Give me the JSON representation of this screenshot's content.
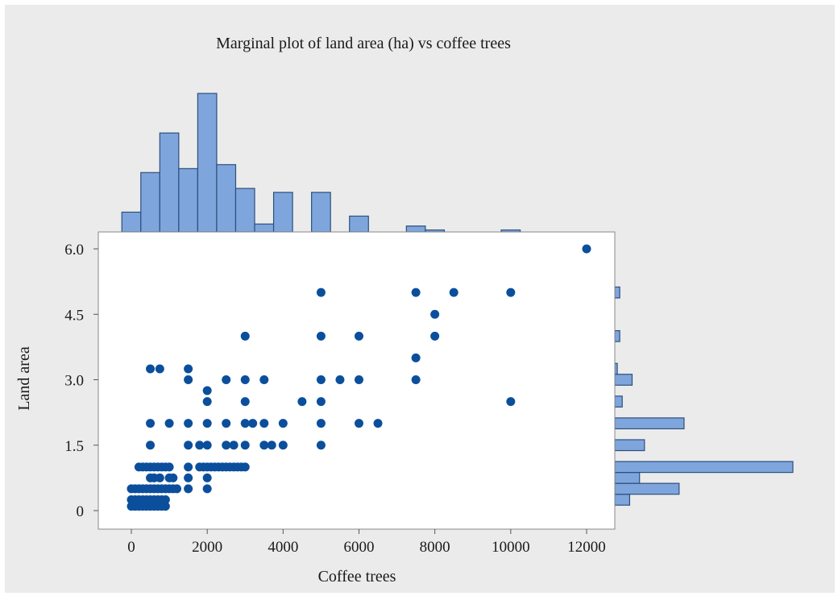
{
  "chart_data": {
    "type": "scatter",
    "title": "Marginal plot of land area (ha) vs coffee trees",
    "xlabel": "Coffee trees",
    "ylabel": "Land area",
    "xlim": [
      -800,
      12800
    ],
    "ylim": [
      -0.3,
      6.35
    ],
    "x_ticks": [
      0,
      2000,
      4000,
      6000,
      8000,
      10000,
      12000
    ],
    "x_tick_labels": [
      "0",
      "2000",
      "4000",
      "6000",
      "8000",
      "10000",
      "12000"
    ],
    "y_ticks": [
      0,
      1.5,
      3.0,
      4.5,
      6.0
    ],
    "y_tick_labels": [
      "0",
      "1.5",
      "3.0",
      "4.5",
      "6.0"
    ],
    "grid": false,
    "colors": {
      "background": "#ebebeb",
      "plot_area": "#ffffff",
      "point": "#0b4f9c",
      "bar_fill": "#7ea6dc",
      "bar_edge": "#2d4f7e"
    },
    "points": [
      [
        12000,
        6.0
      ],
      [
        5000,
        5.0
      ],
      [
        7500,
        5.0
      ],
      [
        8500,
        5.0
      ],
      [
        10000,
        5.0
      ],
      [
        8000,
        4.5
      ],
      [
        3000,
        4.0
      ],
      [
        5000,
        4.0
      ],
      [
        6000,
        4.0
      ],
      [
        8000,
        4.0
      ],
      [
        7500,
        3.5
      ],
      [
        500,
        3.25
      ],
      [
        750,
        3.25
      ],
      [
        1500,
        3.25
      ],
      [
        1500,
        3.0
      ],
      [
        2500,
        3.0
      ],
      [
        3000,
        3.0
      ],
      [
        3500,
        3.0
      ],
      [
        5000,
        3.0
      ],
      [
        5500,
        3.0
      ],
      [
        6000,
        3.0
      ],
      [
        7500,
        3.0
      ],
      [
        2000,
        2.75
      ],
      [
        2000,
        2.5
      ],
      [
        3000,
        2.5
      ],
      [
        4500,
        2.5
      ],
      [
        5000,
        2.5
      ],
      [
        10000,
        2.5
      ],
      [
        500,
        2.0
      ],
      [
        1000,
        2.0
      ],
      [
        1500,
        2.0
      ],
      [
        2000,
        2.0
      ],
      [
        2500,
        2.0
      ],
      [
        3000,
        2.0
      ],
      [
        3200,
        2.0
      ],
      [
        3500,
        2.0
      ],
      [
        4000,
        2.0
      ],
      [
        5000,
        2.0
      ],
      [
        6000,
        2.0
      ],
      [
        6500,
        2.0
      ],
      [
        500,
        1.5
      ],
      [
        1500,
        1.5
      ],
      [
        1800,
        1.5
      ],
      [
        2000,
        1.5
      ],
      [
        2500,
        1.5
      ],
      [
        2700,
        1.5
      ],
      [
        3000,
        1.5
      ],
      [
        3500,
        1.5
      ],
      [
        3700,
        1.5
      ],
      [
        4000,
        1.5
      ],
      [
        5000,
        1.5
      ],
      [
        200,
        1.0
      ],
      [
        300,
        1.0
      ],
      [
        400,
        1.0
      ],
      [
        500,
        1.0
      ],
      [
        600,
        1.0
      ],
      [
        700,
        1.0
      ],
      [
        800,
        1.0
      ],
      [
        900,
        1.0
      ],
      [
        1000,
        1.0
      ],
      [
        1500,
        1.0
      ],
      [
        1800,
        1.0
      ],
      [
        1900,
        1.0
      ],
      [
        2000,
        1.0
      ],
      [
        2100,
        1.0
      ],
      [
        2200,
        1.0
      ],
      [
        2300,
        1.0
      ],
      [
        2400,
        1.0
      ],
      [
        2500,
        1.0
      ],
      [
        2600,
        1.0
      ],
      [
        2700,
        1.0
      ],
      [
        2800,
        1.0
      ],
      [
        2900,
        1.0
      ],
      [
        3000,
        1.0
      ],
      [
        500,
        0.75
      ],
      [
        600,
        0.75
      ],
      [
        750,
        0.75
      ],
      [
        1000,
        0.75
      ],
      [
        1100,
        0.75
      ],
      [
        1500,
        0.75
      ],
      [
        2000,
        0.75
      ],
      [
        0,
        0.5
      ],
      [
        100,
        0.5
      ],
      [
        200,
        0.5
      ],
      [
        300,
        0.5
      ],
      [
        400,
        0.5
      ],
      [
        500,
        0.5
      ],
      [
        600,
        0.5
      ],
      [
        700,
        0.5
      ],
      [
        800,
        0.5
      ],
      [
        900,
        0.5
      ],
      [
        1000,
        0.5
      ],
      [
        1100,
        0.5
      ],
      [
        1200,
        0.5
      ],
      [
        1500,
        0.5
      ],
      [
        2000,
        0.5
      ],
      [
        0,
        0.25
      ],
      [
        100,
        0.25
      ],
      [
        200,
        0.25
      ],
      [
        300,
        0.25
      ],
      [
        400,
        0.25
      ],
      [
        500,
        0.25
      ],
      [
        600,
        0.25
      ],
      [
        700,
        0.25
      ],
      [
        800,
        0.25
      ],
      [
        900,
        0.25
      ],
      [
        0,
        0.1
      ],
      [
        100,
        0.1
      ],
      [
        200,
        0.1
      ],
      [
        300,
        0.1
      ],
      [
        400,
        0.1
      ],
      [
        500,
        0.1
      ],
      [
        600,
        0.1
      ],
      [
        700,
        0.1
      ],
      [
        800,
        0.1
      ],
      [
        900,
        0.1
      ]
    ],
    "x_histogram": {
      "bin_width": 500,
      "bins": [
        {
          "start": -250,
          "count": 5
        },
        {
          "start": 250,
          "count": 15
        },
        {
          "start": 750,
          "count": 25
        },
        {
          "start": 1250,
          "count": 16
        },
        {
          "start": 1750,
          "count": 35
        },
        {
          "start": 2250,
          "count": 17
        },
        {
          "start": 2750,
          "count": 11
        },
        {
          "start": 3250,
          "count": 2
        },
        {
          "start": 3750,
          "count": 10
        },
        {
          "start": 4250,
          "count": 0
        },
        {
          "start": 4750,
          "count": 10
        },
        {
          "start": 5250,
          "count": 0
        },
        {
          "start": 5750,
          "count": 4
        },
        {
          "start": 6250,
          "count": 0
        },
        {
          "start": 6750,
          "count": 0
        },
        {
          "start": 7250,
          "count": 1.5
        },
        {
          "start": 7750,
          "count": 0.5
        },
        {
          "start": 8250,
          "count": 0
        },
        {
          "start": 8750,
          "count": 0
        },
        {
          "start": 9250,
          "count": 0
        },
        {
          "start": 9750,
          "count": 0.5
        }
      ]
    },
    "y_histogram": {
      "bin_height": 0.25,
      "bins": [
        {
          "start": 0.125,
          "count": 3
        },
        {
          "start": 0.375,
          "count": 13
        },
        {
          "start": 0.625,
          "count": 5
        },
        {
          "start": 0.875,
          "count": 36
        },
        {
          "start": 1.125,
          "count": 0
        },
        {
          "start": 1.375,
          "count": 6
        },
        {
          "start": 1.875,
          "count": 14
        },
        {
          "start": 2.375,
          "count": 1.5
        },
        {
          "start": 2.875,
          "count": 3.5
        },
        {
          "start": 3.125,
          "count": 0.5
        },
        {
          "start": 3.875,
          "count": 1
        },
        {
          "start": 4.875,
          "count": 1
        }
      ]
    }
  }
}
